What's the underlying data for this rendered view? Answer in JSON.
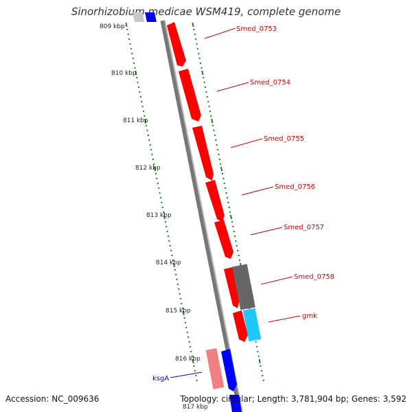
{
  "title": "Sinorhizobium medicae WSM419, complete genome",
  "footer": {
    "accession": "Accession: NC_009636",
    "summary": "Topology: circular; Length: 3,781,904 bp; Genes: 3,592"
  },
  "colors": {
    "forward_gene": "#ff0000",
    "reverse_gene": "#0000ff",
    "tick": "#1a7a1a",
    "backbone": "#777777",
    "cds_gray": "#666666",
    "cds_cyan": "#1ec8ff",
    "ksga_light": "#f08080",
    "label_red": "#cc0000",
    "label_blue": "#0000cc"
  },
  "ticks": [
    "809 kbp",
    "810 kbp",
    "811 kbp",
    "812 kbp",
    "813 kbp",
    "814 kbp",
    "815 kbp",
    "816 kbp",
    "817 kbp"
  ],
  "genes": [
    {
      "name": "Smed_0753",
      "color_key": "label_red"
    },
    {
      "name": "Smed_0754",
      "color_key": "label_red"
    },
    {
      "name": "Smed_0755",
      "color_key": "label_red"
    },
    {
      "name": "Smed_0756",
      "color_key": "label_red"
    },
    {
      "name": "Smed_0757",
      "color_key": "label_red"
    },
    {
      "name": "Smed_0758",
      "color_key": "label_red"
    },
    {
      "name": "gmk",
      "color_key": "label_red"
    },
    {
      "name": "ksgA",
      "color_key": "label_blue"
    }
  ]
}
